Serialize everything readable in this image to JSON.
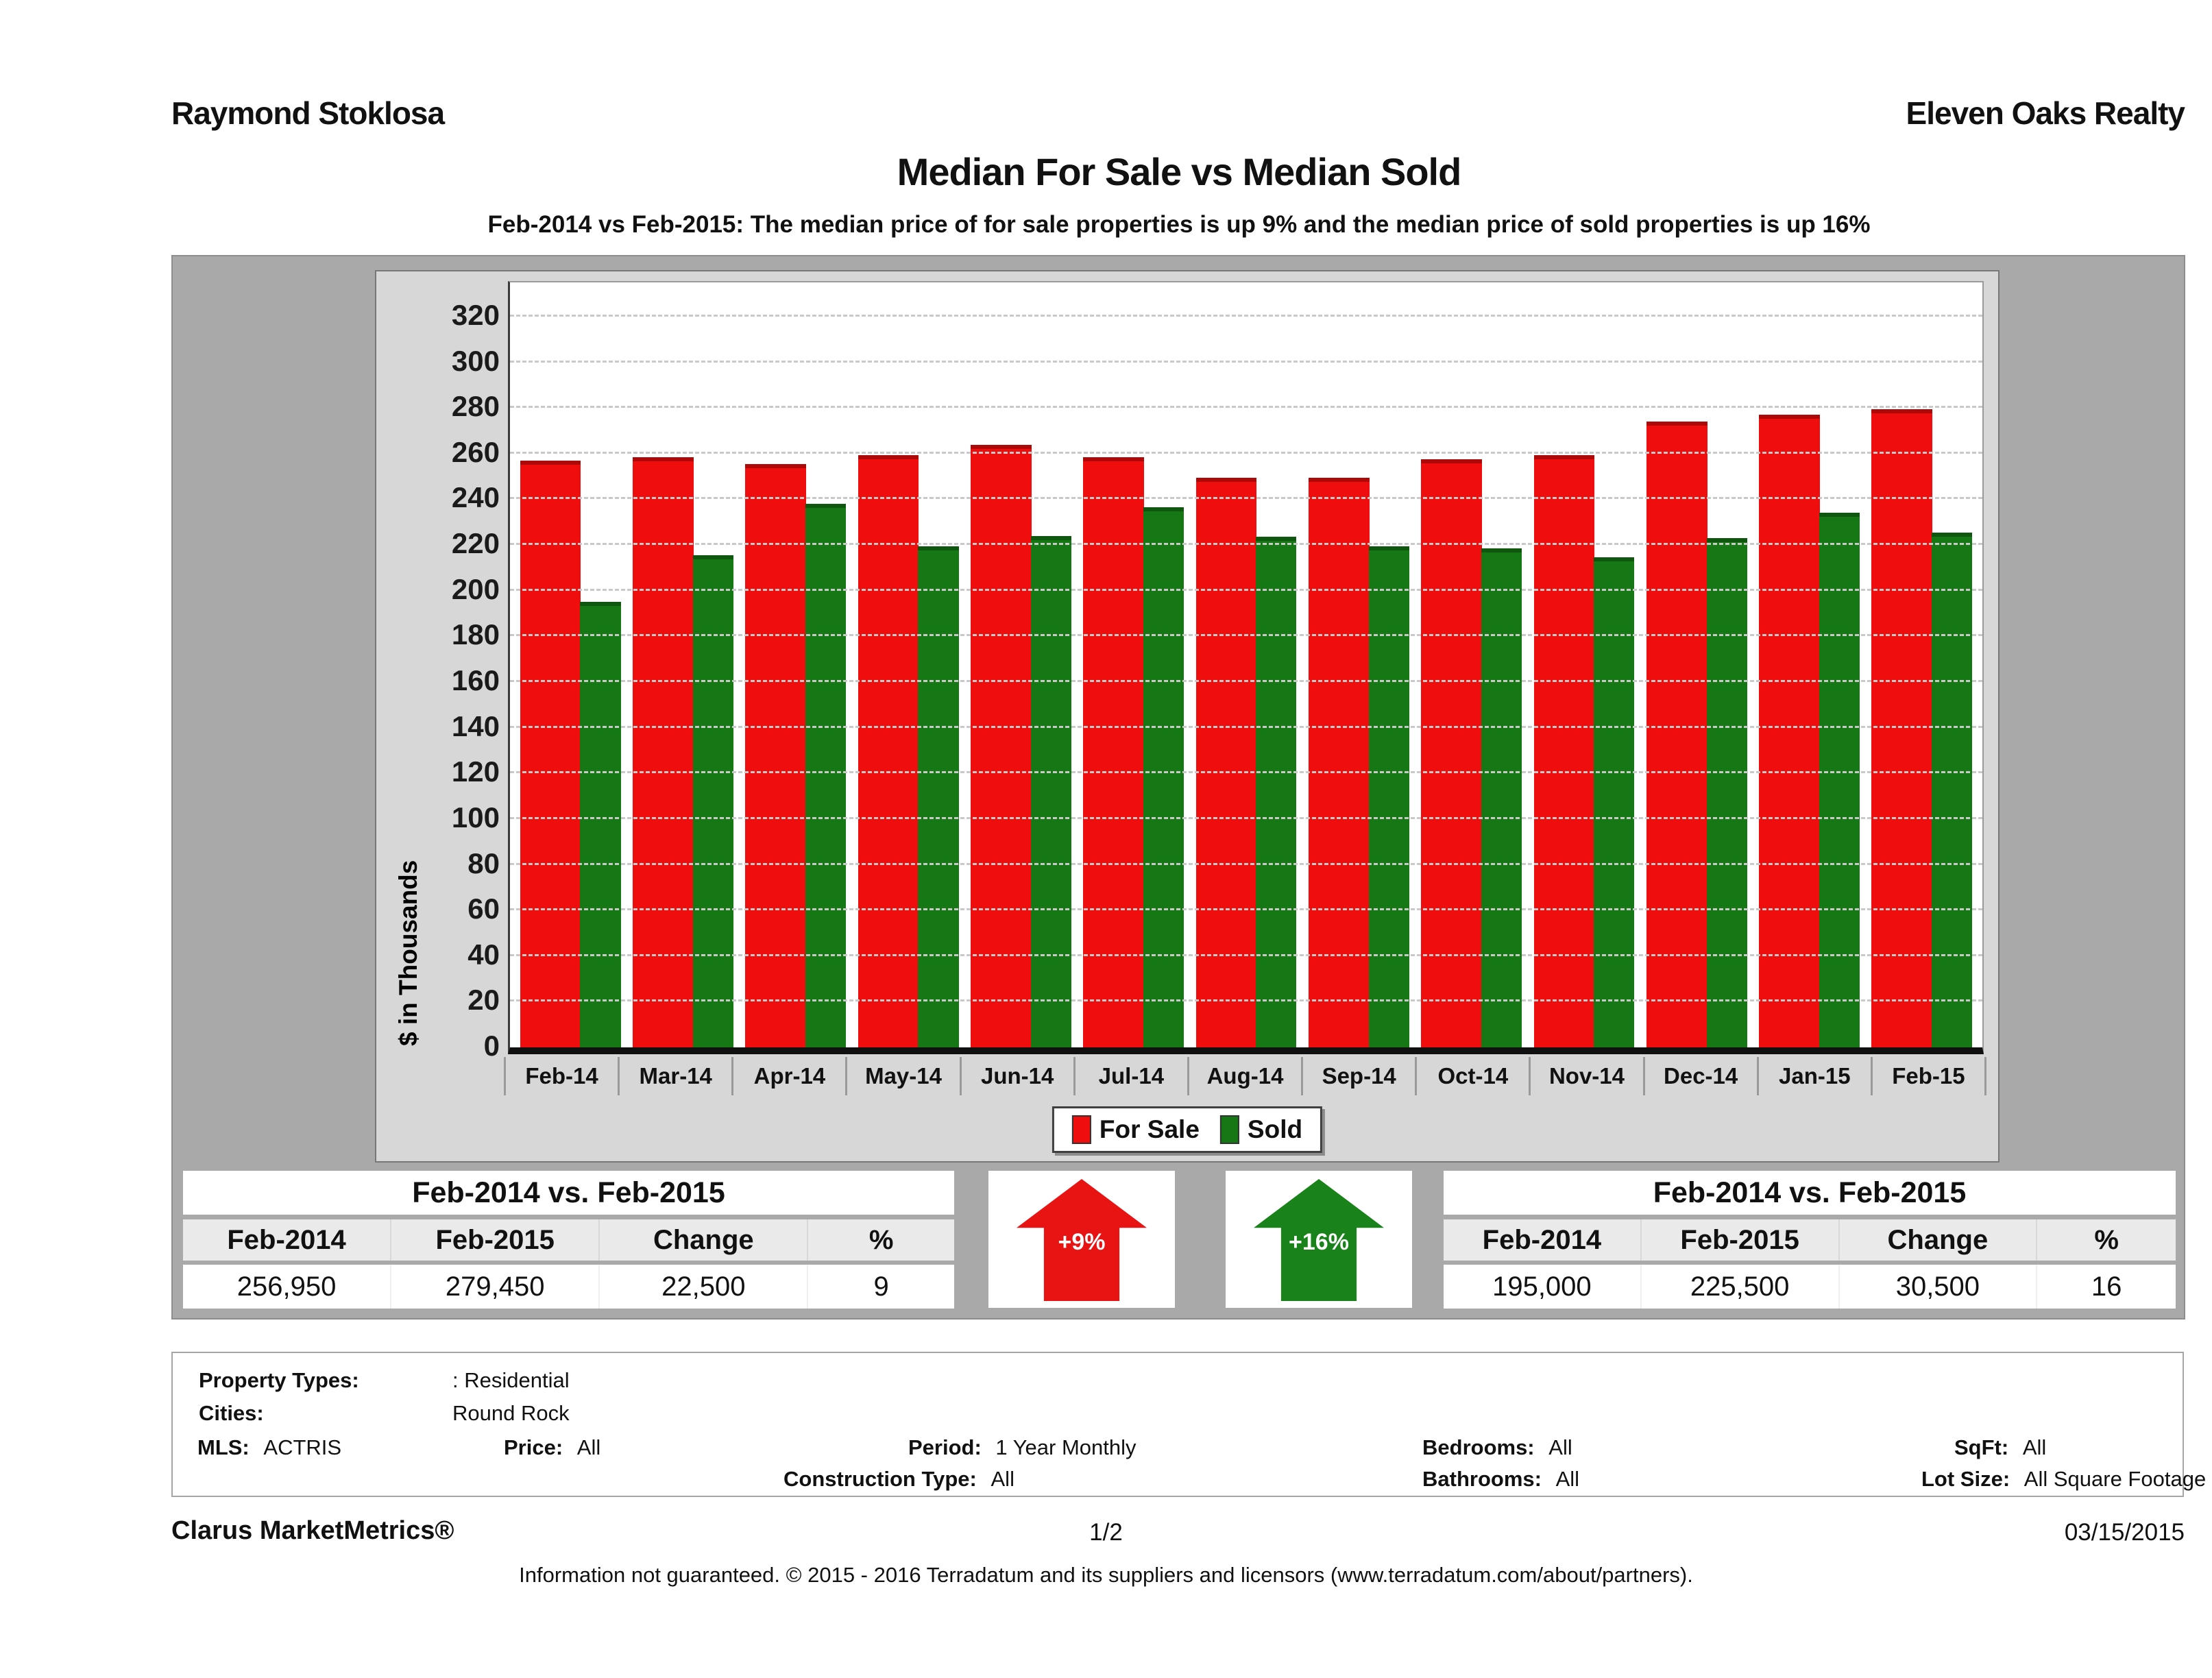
{
  "header": {
    "agent": "Raymond Stoklosa",
    "company": "Eleven Oaks Realty"
  },
  "title": "Median For Sale vs Median Sold",
  "subtitle": "Feb-2014 vs Feb-2015: The median price of for sale properties is up 9% and the median price of sold properties is up 16%",
  "chart_data": {
    "type": "bar",
    "categories": [
      "Feb-14",
      "Mar-14",
      "Apr-14",
      "May-14",
      "Jun-14",
      "Jul-14",
      "Aug-14",
      "Sep-14",
      "Oct-14",
      "Nov-14",
      "Dec-14",
      "Jan-15",
      "Feb-15"
    ],
    "series": [
      {
        "name": "For Sale",
        "color": "#f00d0d",
        "values": [
          256.95,
          258.5,
          255.5,
          259.5,
          264.0,
          258.5,
          249.5,
          249.5,
          257.5,
          259.5,
          274.0,
          277.0,
          279.45
        ]
      },
      {
        "name": "Sold",
        "color": "#157815",
        "values": [
          195.0,
          215.5,
          238.0,
          219.5,
          224.0,
          236.5,
          223.5,
          219.5,
          218.5,
          214.5,
          223.0,
          234.0,
          225.5
        ]
      }
    ],
    "title": "Median For Sale vs Median Sold",
    "xlabel": "",
    "ylabel": "$ in Thousands",
    "ylim": [
      0,
      335
    ],
    "yticks": [
      0,
      20,
      40,
      60,
      80,
      100,
      120,
      140,
      160,
      180,
      200,
      220,
      240,
      260,
      280,
      300,
      320
    ],
    "grid": true,
    "legend_position": "bottom"
  },
  "comparison_left": {
    "title": "Feb-2014 vs. Feb-2015",
    "headers": [
      "Feb-2014",
      "Feb-2015",
      "Change",
      "%"
    ],
    "values": [
      "256,950",
      "279,450",
      "22,500",
      "9"
    ]
  },
  "comparison_right": {
    "title": "Feb-2014 vs. Feb-2015",
    "headers": [
      "Feb-2014",
      "Feb-2015",
      "Change",
      "%"
    ],
    "values": [
      "195,000",
      "225,500",
      "30,500",
      "16"
    ]
  },
  "arrows": {
    "for_sale": {
      "label": "+9%",
      "color": "#e81414",
      "direction": "up"
    },
    "sold": {
      "label": "+16%",
      "color": "#1a821a",
      "direction": "up"
    }
  },
  "filters": {
    "property_types_label": "Property Types:",
    "property_types": ": Residential",
    "cities_label": "Cities:",
    "cities": "Round Rock",
    "mls_label": "MLS:",
    "mls": "ACTRIS",
    "price_label": "Price:",
    "price": "All",
    "period_label": "Period:",
    "period": "1 Year Monthly",
    "bedrooms_label": "Bedrooms:",
    "bedrooms": "All",
    "sqft_label": "SqFt:",
    "sqft": "All",
    "construction_label": "Construction Type:",
    "construction": "All",
    "bathrooms_label": "Bathrooms:",
    "bathrooms": "All",
    "lot_label": "Lot Size:",
    "lot": "All Square Footage"
  },
  "footer": {
    "brand": "Clarus MarketMetrics®",
    "page": "1/2",
    "date": "03/15/2015",
    "disclaimer": "Information not guaranteed. © 2015 - 2016 Terradatum and its suppliers and licensors (www.terradatum.com/about/partners)."
  }
}
